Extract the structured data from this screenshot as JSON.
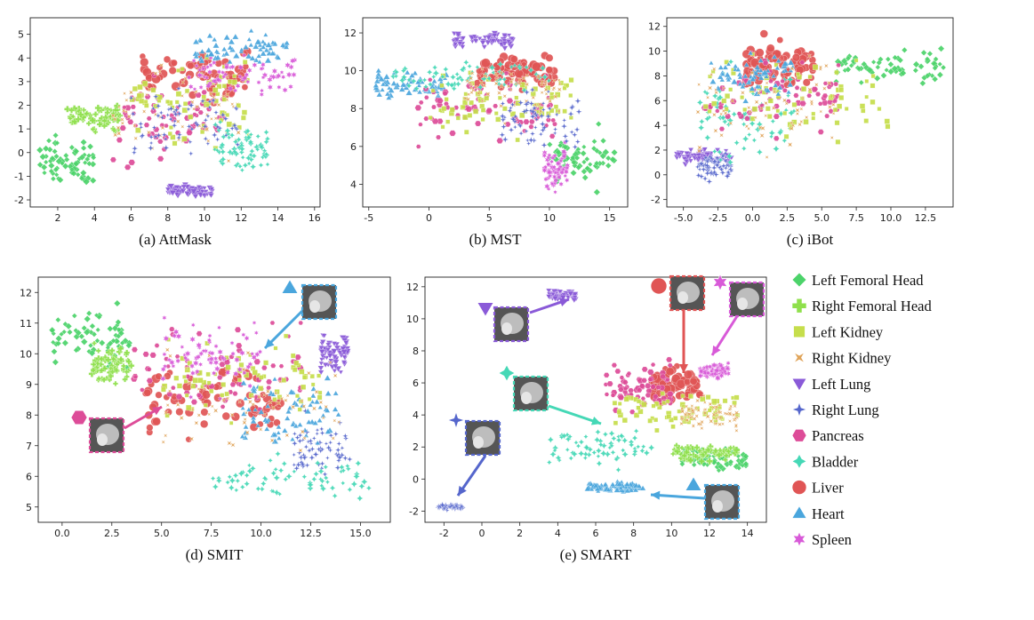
{
  "colors": {
    "Left Femoral Head": "#4cd36a",
    "Right Femoral Head": "#8fe04c",
    "Left Kidney": "#c6de4c",
    "Right Kidney": "#e0a45a",
    "Left Lung": "#8a5ad8",
    "Right Lung": "#5566cc",
    "Pancreas": "#dd4c98",
    "Bladder": "#45d8b6",
    "Liver": "#e05555",
    "Heart": "#4aa6dd",
    "Spleen": "#d85ad8"
  },
  "legend": {
    "position": "right",
    "items": [
      {
        "label": "Left Femoral Head",
        "marker": "diamond"
      },
      {
        "label": "Right Femoral Head",
        "marker": "plus"
      },
      {
        "label": "Left Kidney",
        "marker": "square"
      },
      {
        "label": "Right Kidney",
        "marker": "x"
      },
      {
        "label": "Left Lung",
        "marker": "triangle-down"
      },
      {
        "label": "Right Lung",
        "marker": "star4"
      },
      {
        "label": "Pancreas",
        "marker": "hexagon"
      },
      {
        "label": "Bladder",
        "marker": "star4fat"
      },
      {
        "label": "Liver",
        "marker": "circle"
      },
      {
        "label": "Heart",
        "marker": "triangle-up"
      },
      {
        "label": "Spleen",
        "marker": "star6"
      }
    ]
  },
  "chart_data": [
    {
      "type": "scatter",
      "caption": "(a) AttMask",
      "xlim": [
        0.5,
        16.3
      ],
      "ylim": [
        -2.3,
        5.7
      ],
      "xticks": [
        2,
        4,
        6,
        8,
        10,
        12,
        14,
        16
      ],
      "yticks": [
        -2,
        -1,
        0,
        1,
        2,
        3,
        4,
        5
      ],
      "clusters": [
        {
          "organ": "Left Femoral Head",
          "x": [
            1.0,
            4.0
          ],
          "y": [
            -2.0,
            1.2
          ]
        },
        {
          "organ": "Right Femoral Head",
          "x": [
            2.5,
            5.5
          ],
          "y": [
            0.5,
            2.5
          ]
        },
        {
          "organ": "Liver",
          "x": [
            6.5,
            12.5
          ],
          "y": [
            1.5,
            5.0
          ]
        },
        {
          "organ": "Pancreas",
          "x": [
            5.0,
            11.0
          ],
          "y": [
            -1.5,
            4.5
          ]
        },
        {
          "organ": "Right Kidney",
          "x": [
            5.0,
            12.0
          ],
          "y": [
            -1.5,
            5.0
          ]
        },
        {
          "organ": "Left Kidney",
          "x": [
            6.0,
            12.5
          ],
          "y": [
            -1.0,
            5.0
          ]
        },
        {
          "organ": "Bladder",
          "x": [
            10.5,
            13.5
          ],
          "y": [
            -1.8,
            2.0
          ]
        },
        {
          "organ": "Left Lung",
          "x": [
            8.0,
            10.5
          ],
          "y": [
            -2.0,
            -1.2
          ]
        },
        {
          "organ": "Spleen",
          "x": [
            9.0,
            15.0
          ],
          "y": [
            2.0,
            4.5
          ]
        },
        {
          "organ": "Heart",
          "x": [
            9.5,
            14.5
          ],
          "y": [
            3.5,
            5.3
          ]
        },
        {
          "organ": "Right Lung",
          "x": [
            6.0,
            12.0
          ],
          "y": [
            -1.0,
            3.5
          ]
        }
      ]
    },
    {
      "type": "scatter",
      "caption": "(b) MST",
      "xlim": [
        -5.5,
        16.5
      ],
      "ylim": [
        2.8,
        12.8
      ],
      "xticks": [
        -5,
        0,
        5,
        10,
        15
      ],
      "yticks": [
        4,
        6,
        8,
        10,
        12
      ],
      "clusters": [
        {
          "organ": "Heart",
          "x": [
            -4.5,
            1.5
          ],
          "y": [
            8.0,
            10.5
          ]
        },
        {
          "organ": "Left Lung",
          "x": [
            2.0,
            7.0
          ],
          "y": [
            11.0,
            12.3
          ]
        },
        {
          "organ": "Liver",
          "x": [
            4.0,
            10.5
          ],
          "y": [
            8.5,
            11.5
          ]
        },
        {
          "organ": "Pancreas",
          "x": [
            -1.0,
            11.0
          ],
          "y": [
            5.0,
            11.0
          ]
        },
        {
          "organ": "Left Kidney",
          "x": [
            0.0,
            12.0
          ],
          "y": [
            6.0,
            10.8
          ]
        },
        {
          "organ": "Bladder",
          "x": [
            -3.0,
            10.0
          ],
          "y": [
            8.5,
            11.0
          ]
        },
        {
          "organ": "Left Femoral Head",
          "x": [
            10.0,
            15.5
          ],
          "y": [
            3.0,
            7.5
          ]
        },
        {
          "organ": "Spleen",
          "x": [
            9.5,
            11.5
          ],
          "y": [
            3.0,
            6.5
          ]
        },
        {
          "organ": "Right Kidney",
          "x": [
            3.0,
            11.0
          ],
          "y": [
            7.0,
            11.0
          ]
        },
        {
          "organ": "Right Lung",
          "x": [
            6.0,
            12.5
          ],
          "y": [
            5.0,
            10.0
          ]
        }
      ]
    },
    {
      "type": "scatter",
      "caption": "(c) iBot",
      "xlim": [
        -6.2,
        14.5
      ],
      "ylim": [
        -2.6,
        12.7
      ],
      "xticks": [
        -5.0,
        -2.5,
        0.0,
        2.5,
        5.0,
        7.5,
        10.0,
        12.5
      ],
      "yticks": [
        -2,
        0,
        2,
        4,
        6,
        8,
        10,
        12
      ],
      "clusters": [
        {
          "organ": "Liver",
          "x": [
            -0.5,
            4.5
          ],
          "y": [
            6.0,
            12.0
          ]
        },
        {
          "organ": "Left Femoral Head",
          "x": [
            6.0,
            13.8
          ],
          "y": [
            6.5,
            11.0
          ]
        },
        {
          "organ": "Left Lung",
          "x": [
            -5.5,
            -1.5
          ],
          "y": [
            0.5,
            2.5
          ]
        },
        {
          "organ": "Right Lung",
          "x": [
            -4.0,
            -1.5
          ],
          "y": [
            -1.0,
            2.5
          ]
        },
        {
          "organ": "Bladder",
          "x": [
            -4.0,
            3.0
          ],
          "y": [
            -1.5,
            11.0
          ]
        },
        {
          "organ": "Pancreas",
          "x": [
            -3.5,
            6.5
          ],
          "y": [
            1.0,
            12.0
          ]
        },
        {
          "organ": "Left Kidney",
          "x": [
            -3.5,
            10.0
          ],
          "y": [
            1.0,
            11.5
          ]
        },
        {
          "organ": "Heart",
          "x": [
            -3.0,
            3.0
          ],
          "y": [
            5.0,
            11.0
          ]
        },
        {
          "organ": "Right Kidney",
          "x": [
            -4.0,
            6.0
          ],
          "y": [
            0.0,
            11.0
          ]
        }
      ]
    },
    {
      "type": "scatter",
      "caption": "(d) SMIT",
      "xlim": [
        -1.2,
        16.5
      ],
      "ylim": [
        4.5,
        12.5
      ],
      "xticks": [
        0.0,
        2.5,
        5.0,
        7.5,
        10.0,
        12.5,
        15.0
      ],
      "yticks": [
        5,
        6,
        7,
        8,
        9,
        10,
        11,
        12
      ],
      "clusters": [
        {
          "organ": "Left Femoral Head",
          "x": [
            -0.5,
            3.5
          ],
          "y": [
            9.0,
            12.0
          ]
        },
        {
          "organ": "Liver",
          "x": [
            4.0,
            11.0
          ],
          "y": [
            6.5,
            10.5
          ]
        },
        {
          "organ": "Pancreas",
          "x": [
            3.5,
            12.0
          ],
          "y": [
            7.0,
            12.0
          ]
        },
        {
          "organ": "Left Lung",
          "x": [
            13.0,
            14.5
          ],
          "y": [
            9.0,
            11.0
          ]
        },
        {
          "organ": "Right Lung",
          "x": [
            11.5,
            14.5
          ],
          "y": [
            5.5,
            8.5
          ]
        },
        {
          "organ": "Bladder",
          "x": [
            7.5,
            15.5
          ],
          "y": [
            4.8,
            7.0
          ]
        },
        {
          "organ": "Heart",
          "x": [
            9.0,
            14.0
          ],
          "y": [
            6.0,
            10.0
          ]
        },
        {
          "organ": "Left Kidney",
          "x": [
            5.0,
            13.0
          ],
          "y": [
            7.0,
            11.5
          ]
        },
        {
          "organ": "Right Kidney",
          "x": [
            5.0,
            14.0
          ],
          "y": [
            5.5,
            11.5
          ]
        },
        {
          "organ": "Spleen",
          "x": [
            5.0,
            10.0
          ],
          "y": [
            8.0,
            12.0
          ]
        },
        {
          "organ": "Right Femoral Head",
          "x": [
            1.5,
            3.5
          ],
          "y": [
            8.7,
            10.5
          ]
        }
      ]
    },
    {
      "type": "scatter",
      "caption": "(e) SMART",
      "xlim": [
        -3.0,
        15.0
      ],
      "ylim": [
        -2.7,
        12.6
      ],
      "xticks": [
        -2,
        0,
        2,
        4,
        6,
        8,
        10,
        12,
        14
      ],
      "yticks": [
        -2,
        0,
        2,
        4,
        6,
        8,
        10,
        12
      ],
      "clusters": [
        {
          "organ": "Left Lung",
          "x": [
            3.5,
            5.0
          ],
          "y": [
            11.0,
            12.0
          ]
        },
        {
          "organ": "Right Lung",
          "x": [
            -2.3,
            -1.0
          ],
          "y": [
            -2.0,
            -1.5
          ]
        },
        {
          "organ": "Liver",
          "x": [
            9.0,
            11.5
          ],
          "y": [
            4.0,
            7.5
          ]
        },
        {
          "organ": "Pancreas",
          "x": [
            6.5,
            10.0
          ],
          "y": [
            3.0,
            8.5
          ]
        },
        {
          "organ": "Spleen",
          "x": [
            11.5,
            13.0
          ],
          "y": [
            6.0,
            7.5
          ]
        },
        {
          "organ": "Bladder",
          "x": [
            3.5,
            9.0
          ],
          "y": [
            0.0,
            4.0
          ]
        },
        {
          "organ": "Left Femoral Head",
          "x": [
            10.5,
            14.0
          ],
          "y": [
            0.0,
            2.5
          ]
        },
        {
          "organ": "Right Femoral Head",
          "x": [
            10.0,
            13.5
          ],
          "y": [
            0.8,
            2.5
          ]
        },
        {
          "organ": "Left Kidney",
          "x": [
            7.0,
            13.5
          ],
          "y": [
            2.5,
            6.0
          ]
        },
        {
          "organ": "Right Kidney",
          "x": [
            10.5,
            13.5
          ],
          "y": [
            2.5,
            5.5
          ]
        },
        {
          "organ": "Heart",
          "x": [
            5.5,
            8.5
          ],
          "y": [
            -1.0,
            0.0
          ]
        }
      ]
    }
  ]
}
